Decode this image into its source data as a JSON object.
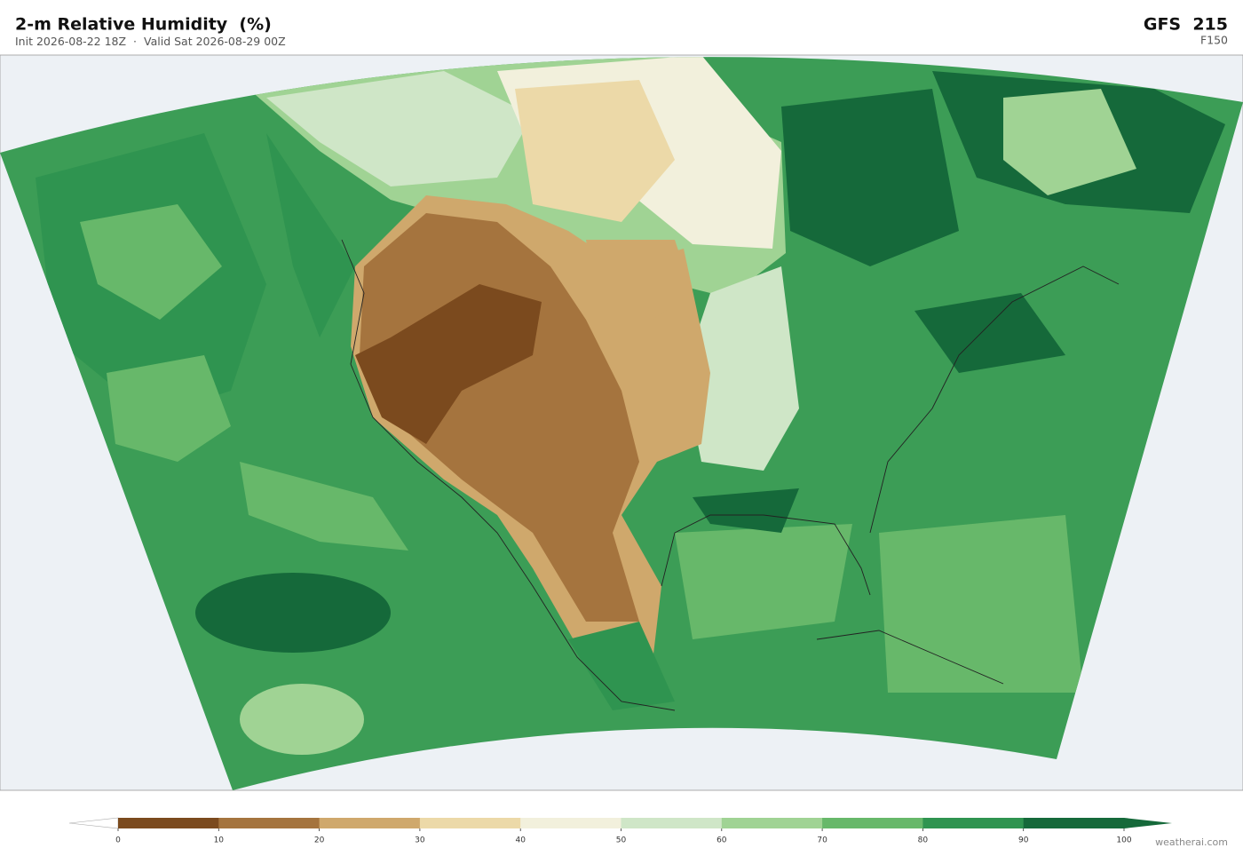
{
  "header": {
    "title": "2-m Relative Humidity  (%)",
    "init": "Init 2026-08-22 18Z",
    "separator": "·",
    "valid": "Valid Sat 2026-08-29 00Z",
    "model": "GFS  215",
    "forecast_hour": "F150"
  },
  "colorbar": {
    "ticks": [
      0,
      10,
      20,
      30,
      40,
      50,
      60,
      70,
      80,
      90,
      100
    ],
    "colors": [
      "#7b4a1e",
      "#a5743e",
      "#cfa86c",
      "#ecd9a8",
      "#f2f0dc",
      "#cfe6c7",
      "#a0d394",
      "#67b86a",
      "#2f9450",
      "#15693a"
    ],
    "under_color": "#ffffff",
    "over_color": "#15693a"
  },
  "credit": "weatherai.com"
}
